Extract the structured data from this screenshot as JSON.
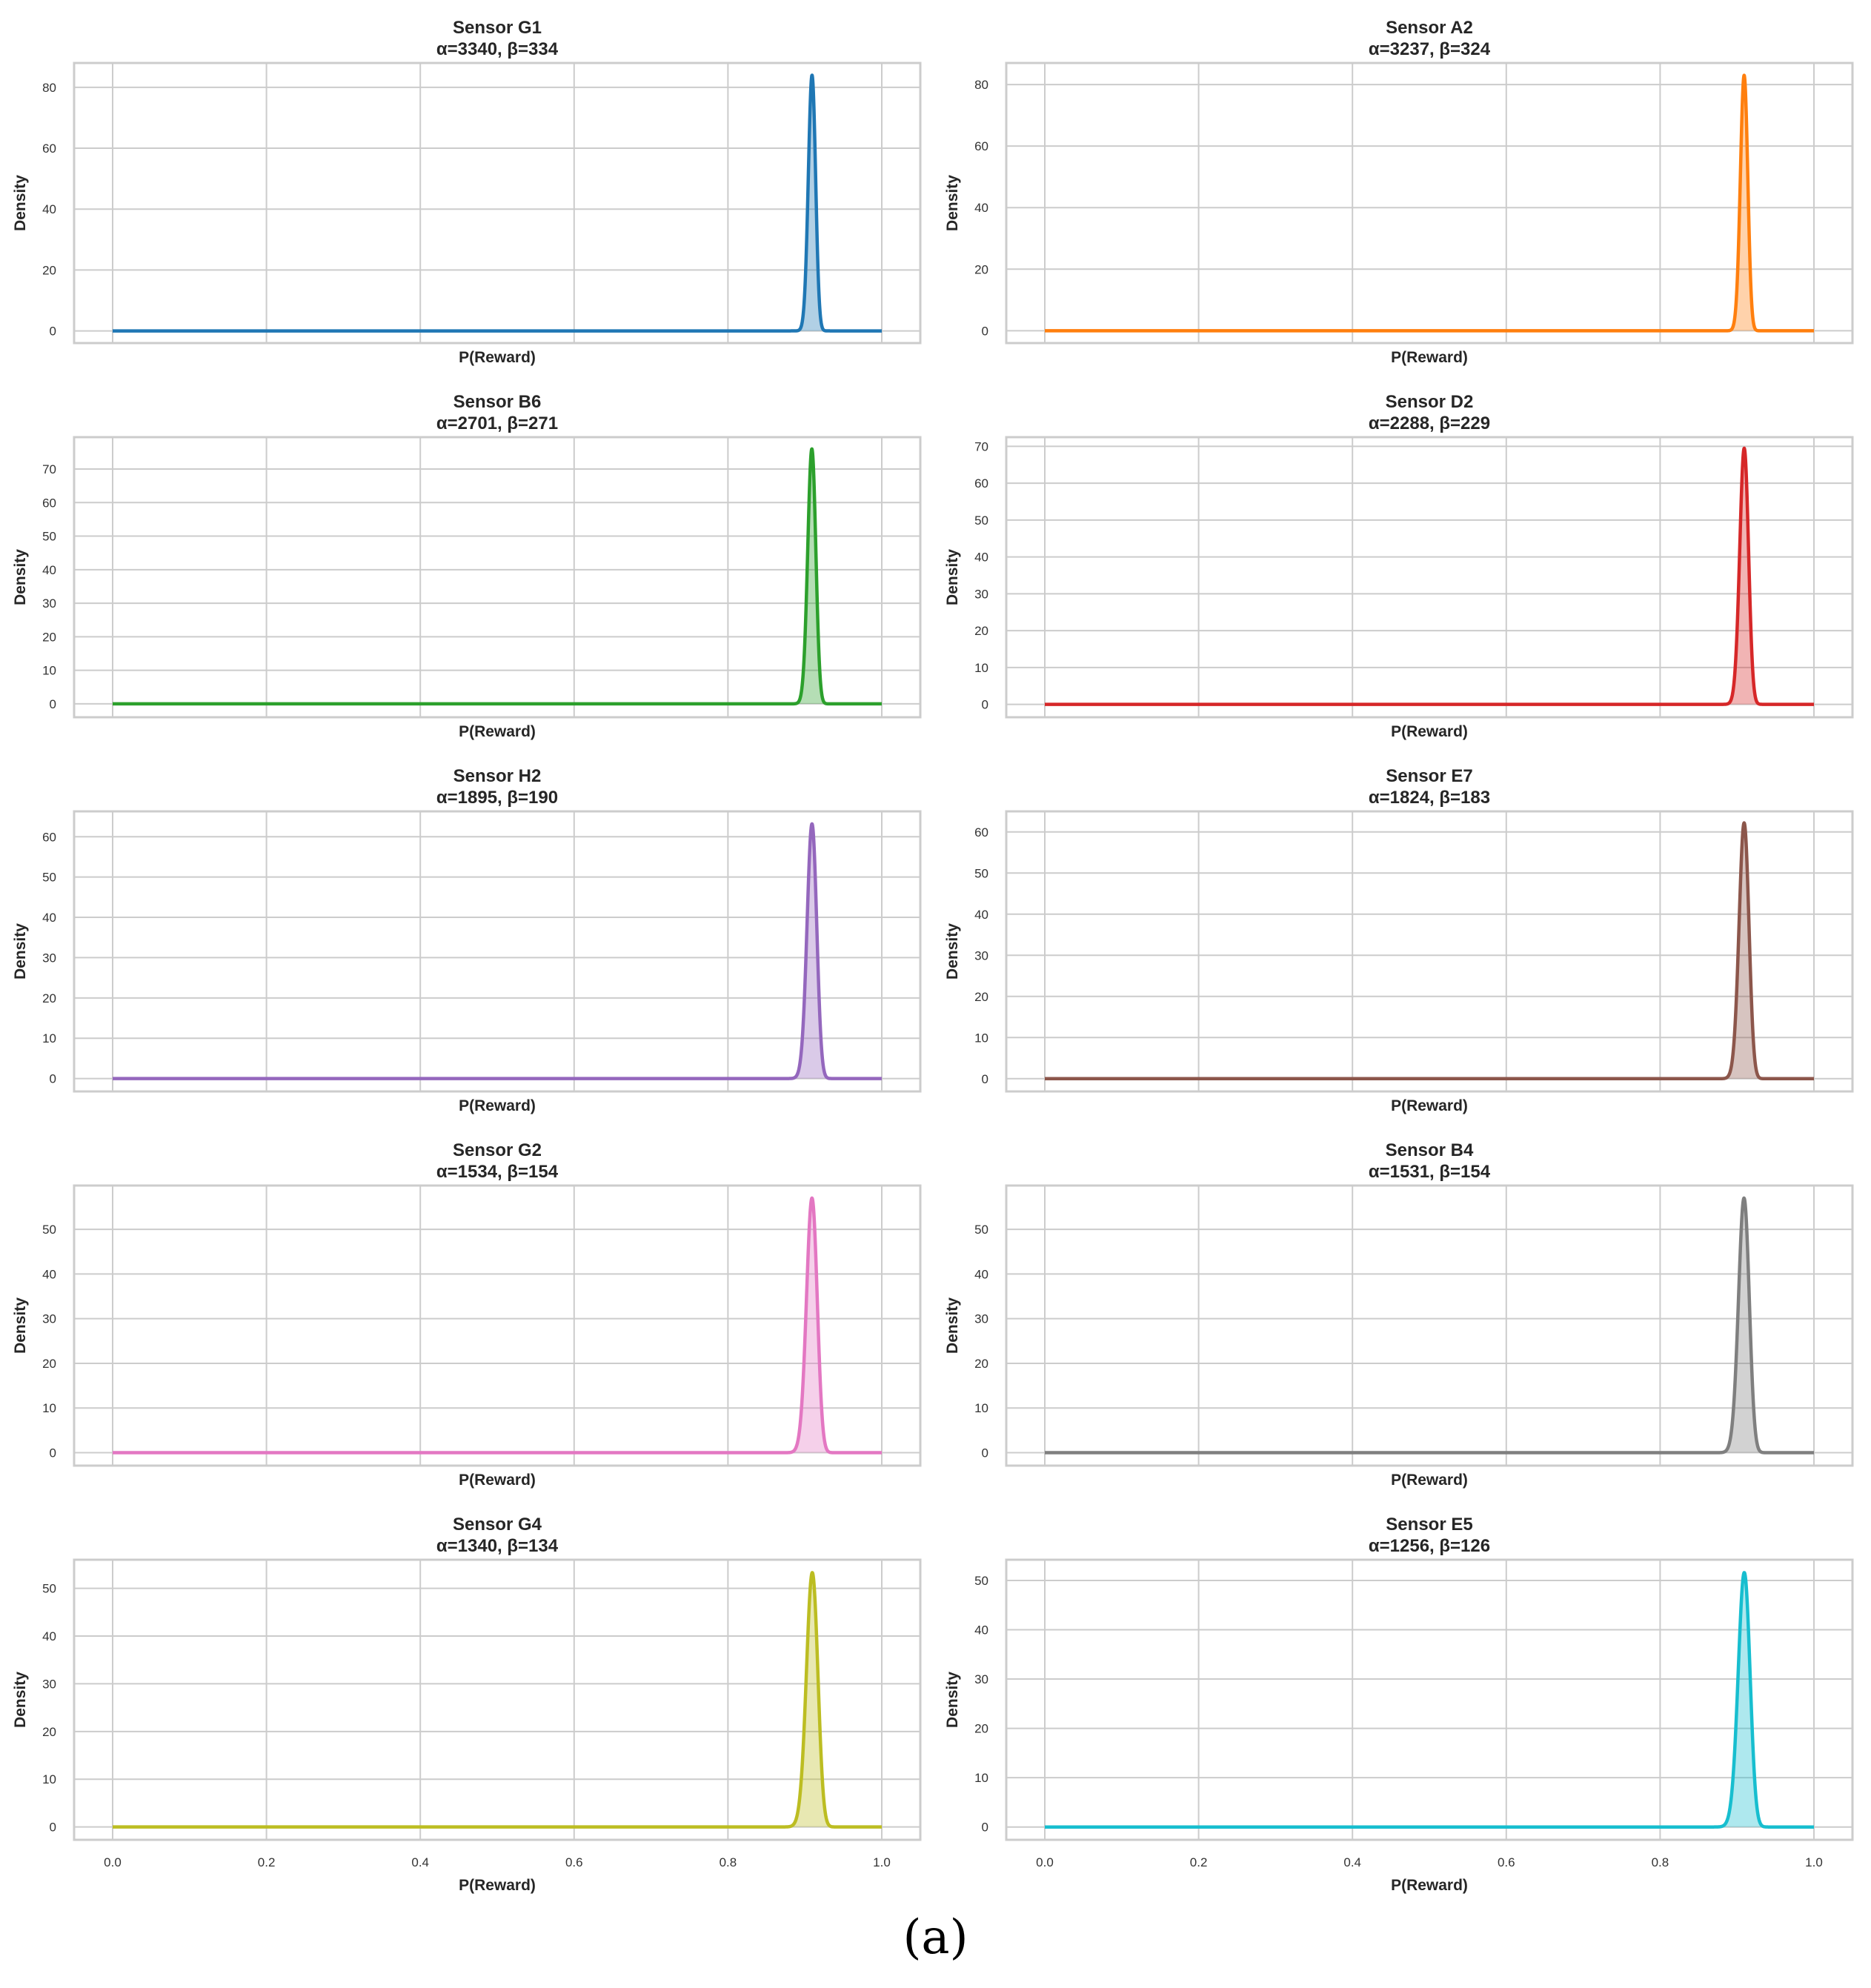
{
  "figure": {
    "caption": "(a)",
    "x_tick_labels": [
      "0.0",
      "0.2",
      "0.4",
      "0.6",
      "0.8",
      "1.0"
    ]
  },
  "chart_data": [
    {
      "type": "area",
      "title": "Sensor G1",
      "subtitle": "α=3340, β=334",
      "xlabel": "P(Reward)",
      "ylabel": "Density",
      "alpha": 3340,
      "beta": 334,
      "xlim": [
        0.0,
        1.0
      ],
      "ylim": [
        -4,
        88
      ],
      "yticks": [
        0,
        20,
        40,
        60,
        80
      ],
      "color": "#1f77b4",
      "peak_x": 0.909,
      "peak_density": 84,
      "grid": true,
      "legend": "none"
    },
    {
      "type": "area",
      "title": "Sensor A2",
      "subtitle": "α=3237, β=324",
      "xlabel": "P(Reward)",
      "ylabel": "Density",
      "alpha": 3237,
      "beta": 324,
      "xlim": [
        0.0,
        1.0
      ],
      "ylim": [
        -4,
        87
      ],
      "yticks": [
        0,
        20,
        40,
        60,
        80
      ],
      "color": "#ff7f0e",
      "peak_x": 0.909,
      "peak_density": 83,
      "grid": true,
      "legend": "none"
    },
    {
      "type": "area",
      "title": "Sensor B6",
      "subtitle": "α=2701, β=271",
      "xlabel": "P(Reward)",
      "ylabel": "Density",
      "alpha": 2701,
      "beta": 271,
      "xlim": [
        0.0,
        1.0
      ],
      "ylim": [
        -4,
        79.5
      ],
      "yticks": [
        0,
        10,
        20,
        30,
        40,
        50,
        60,
        70
      ],
      "color": "#2ca02c",
      "peak_x": 0.909,
      "peak_density": 76,
      "grid": true,
      "legend": "none"
    },
    {
      "type": "area",
      "title": "Sensor D2",
      "subtitle": "α=2288, β=229",
      "xlabel": "P(Reward)",
      "ylabel": "Density",
      "alpha": 2288,
      "beta": 229,
      "xlim": [
        0.0,
        1.0
      ],
      "ylim": [
        -3.5,
        72.5
      ],
      "yticks": [
        0,
        10,
        20,
        30,
        40,
        50,
        60,
        70
      ],
      "color": "#d62728",
      "peak_x": 0.909,
      "peak_density": 69.5,
      "grid": true,
      "legend": "none"
    },
    {
      "type": "area",
      "title": "Sensor H2",
      "subtitle": "α=1895, β=190",
      "xlabel": "P(Reward)",
      "ylabel": "Density",
      "alpha": 1895,
      "beta": 190,
      "xlim": [
        0.0,
        1.0
      ],
      "ylim": [
        -3.2,
        66.3
      ],
      "yticks": [
        0,
        10,
        20,
        30,
        40,
        50,
        60
      ],
      "color": "#9467bd",
      "peak_x": 0.909,
      "peak_density": 63.2,
      "grid": true,
      "legend": "none"
    },
    {
      "type": "area",
      "title": "Sensor E7",
      "subtitle": "α=1824, β=183",
      "xlabel": "P(Reward)",
      "ylabel": "Density",
      "alpha": 1824,
      "beta": 183,
      "xlim": [
        0.0,
        1.0
      ],
      "ylim": [
        -3.1,
        65
      ],
      "yticks": [
        0,
        10,
        20,
        30,
        40,
        50,
        60
      ],
      "color": "#8c564b",
      "peak_x": 0.909,
      "peak_density": 62.2,
      "grid": true,
      "legend": "none"
    },
    {
      "type": "area",
      "title": "Sensor G2",
      "subtitle": "α=1534, β=154",
      "xlabel": "P(Reward)",
      "ylabel": "Density",
      "alpha": 1534,
      "beta": 154,
      "xlim": [
        0.0,
        1.0
      ],
      "ylim": [
        -2.9,
        59.8
      ],
      "yticks": [
        0,
        10,
        20,
        30,
        40,
        50
      ],
      "color": "#e377c2",
      "peak_x": 0.909,
      "peak_density": 57,
      "grid": true,
      "legend": "none"
    },
    {
      "type": "area",
      "title": "Sensor B4",
      "subtitle": "α=1531, β=154",
      "xlabel": "P(Reward)",
      "ylabel": "Density",
      "alpha": 1531,
      "beta": 154,
      "xlim": [
        0.0,
        1.0
      ],
      "ylim": [
        -2.9,
        59.8
      ],
      "yticks": [
        0,
        10,
        20,
        30,
        40,
        50
      ],
      "color": "#7f7f7f",
      "peak_x": 0.909,
      "peak_density": 57,
      "grid": true,
      "legend": "none"
    },
    {
      "type": "area",
      "title": "Sensor G4",
      "subtitle": "α=1340, β=134",
      "xlabel": "P(Reward)",
      "ylabel": "Density",
      "alpha": 1340,
      "beta": 134,
      "xlim": [
        0.0,
        1.0
      ],
      "ylim": [
        -2.7,
        56
      ],
      "yticks": [
        0,
        10,
        20,
        30,
        40,
        50
      ],
      "color": "#bcbd22",
      "peak_x": 0.909,
      "peak_density": 53.3,
      "grid": true,
      "legend": "none"
    },
    {
      "type": "area",
      "title": "Sensor E5",
      "subtitle": "α=1256, β=126",
      "xlabel": "P(Reward)",
      "ylabel": "Density",
      "alpha": 1256,
      "beta": 126,
      "xlim": [
        0.0,
        1.0
      ],
      "ylim": [
        -2.6,
        54.2
      ],
      "yticks": [
        0,
        10,
        20,
        30,
        40,
        50
      ],
      "color": "#17becf",
      "peak_x": 0.909,
      "peak_density": 51.6,
      "grid": true,
      "legend": "none"
    }
  ]
}
